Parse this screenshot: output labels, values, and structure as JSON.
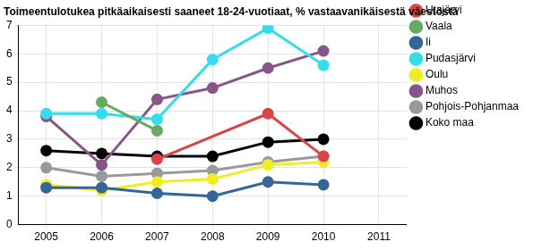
{
  "chart_data": {
    "type": "line",
    "title": "Toimeentulotukea pitkäaikaisesti saaneet 18-24-vuotiaat, % vastaavanikäisestä väestöstä",
    "x": [
      2005,
      2006,
      2007,
      2008,
      2009,
      2010
    ],
    "xlim": [
      2004.5,
      2011.5
    ],
    "xticks": [
      2005,
      2006,
      2007,
      2008,
      2009,
      2010,
      2011
    ],
    "ylim": [
      0,
      7
    ],
    "yticks": [
      0,
      1,
      2,
      3,
      4,
      5,
      6,
      7
    ],
    "grid": true,
    "legend": "right",
    "marker": "circle",
    "series": [
      {
        "name": "Utajärvi",
        "color": "#dd4444",
        "values": [
          null,
          null,
          2.3,
          null,
          3.9,
          2.4
        ]
      },
      {
        "name": "Vaala",
        "color": "#66aa66",
        "values": [
          null,
          4.3,
          3.3,
          null,
          null,
          null
        ]
      },
      {
        "name": "Ii",
        "color": "#336699",
        "values": [
          1.3,
          1.3,
          1.1,
          1.0,
          1.5,
          1.4
        ]
      },
      {
        "name": "Pudasjärvi",
        "color": "#33ddee",
        "values": [
          3.9,
          3.9,
          3.7,
          5.8,
          6.9,
          5.6
        ]
      },
      {
        "name": "Oulu",
        "color": "#eeee22",
        "values": [
          1.4,
          1.2,
          1.5,
          1.6,
          2.1,
          2.2
        ]
      },
      {
        "name": "Muhos",
        "color": "#885588",
        "values": [
          3.8,
          2.1,
          4.4,
          4.8,
          5.5,
          6.1
        ]
      },
      {
        "name": "Pohjois-Pohjanmaa",
        "color": "#999999",
        "values": [
          2.0,
          1.7,
          1.8,
          1.9,
          2.2,
          2.4
        ]
      },
      {
        "name": "Koko maa",
        "color": "#000000",
        "values": [
          2.6,
          2.5,
          2.4,
          2.4,
          2.9,
          3.0
        ]
      }
    ]
  }
}
